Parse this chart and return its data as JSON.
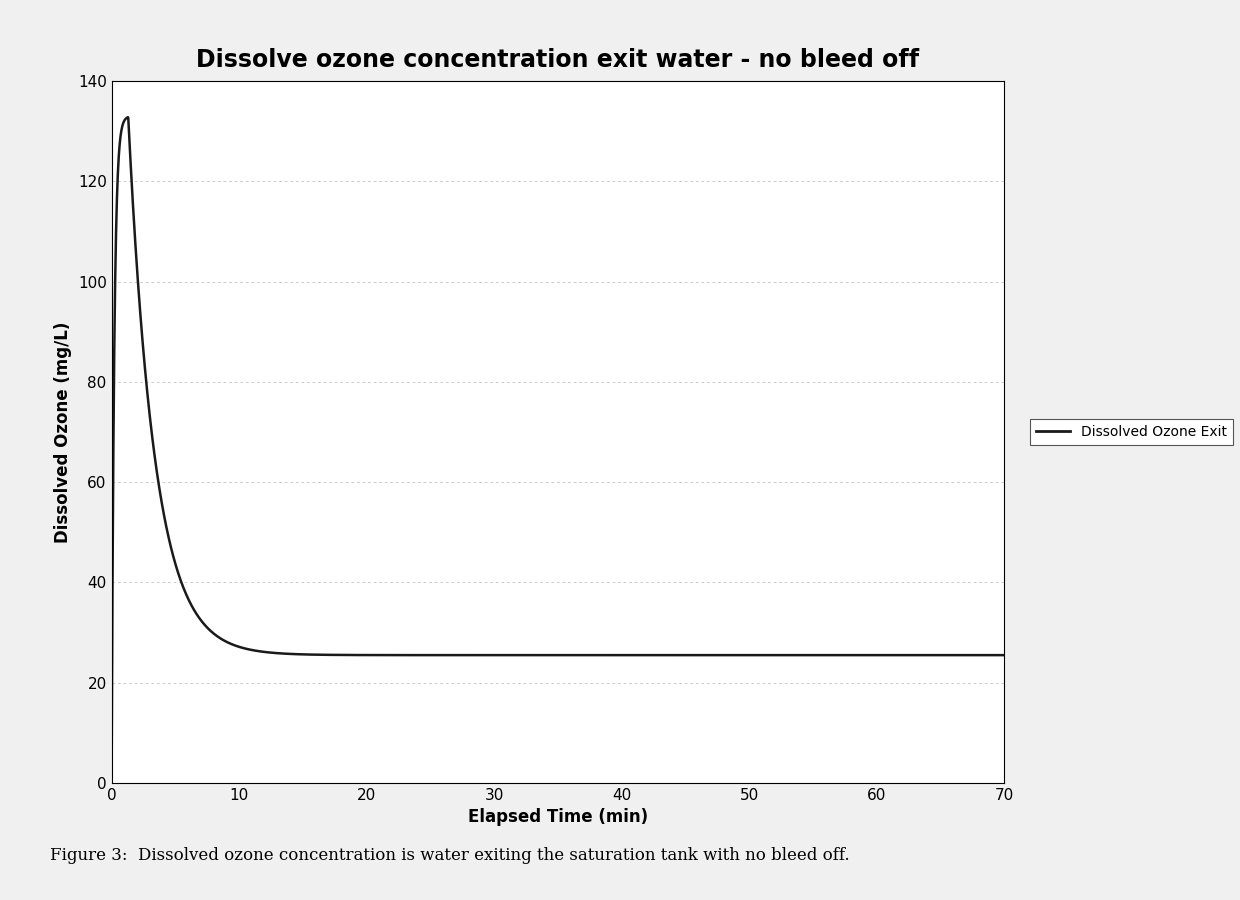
{
  "title": "Dissolve ozone concentration exit water - no bleed off",
  "xlabel": "Elapsed Time (min)",
  "ylabel": "Dissolved Ozone (mg/L)",
  "xlim": [
    0,
    70
  ],
  "ylim": [
    0,
    140
  ],
  "yticks": [
    0,
    20,
    40,
    60,
    80,
    100,
    120,
    140
  ],
  "xticks": [
    0,
    10,
    20,
    30,
    40,
    50,
    60,
    70
  ],
  "line_color": "#1a1a1a",
  "legend_label": "Dissolved Ozone Exit",
  "caption": "Figure 3:  Dissolved ozone concentration is water exiting the saturation tank with no bleed off.",
  "peak_value": 133,
  "peak_time": 1.3,
  "steady_state": 25.5,
  "decay_rate": 0.48,
  "rise_rate": 5.0,
  "background_color": "#f0f0f0",
  "plot_bg_color": "#ffffff",
  "grid_color": "#888888",
  "title_fontsize": 17,
  "label_fontsize": 12,
  "tick_fontsize": 11,
  "caption_fontsize": 12,
  "legend_fontsize": 10
}
